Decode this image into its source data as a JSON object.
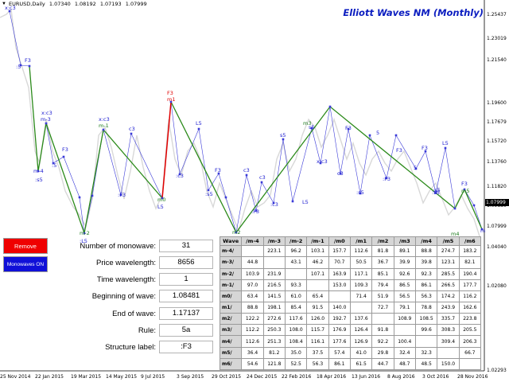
{
  "header": {
    "arrow": "▼",
    "symbol": "EURUSD,Daily",
    "open": "1.07340",
    "high": "1.08192",
    "low": "1.07193",
    "close": "1.07999"
  },
  "title": "Elliott Waves NM (Monthly)",
  "colors": {
    "title": "#0b1dc0",
    "green_wave": "#2b8a1a",
    "red_wave": "#e00000",
    "blue_line": "#3a3ad8",
    "price_series": "#d8d8d8",
    "label_blue": "#1a1ad0",
    "label_green": "#1a7a1a",
    "remove_button": "#ef0000",
    "monowaves_button": "#1010d8"
  },
  "y_axis": [
    "1.25437",
    "1.23019",
    "1.21540",
    "1.19600",
    "1.17679",
    "1.15720",
    "1.13760",
    "1.11820",
    "1.09880",
    "1.07999",
    "1.04040",
    "1.02080",
    "1.02293"
  ],
  "current_price": "1.07999",
  "x_axis": [
    "25 Nov 2014",
    "22 Jan 2015",
    "19 Mar 2015",
    "14 May 2015",
    "9 Jul 2015",
    "3 Sep 2015",
    "29 Oct 2015",
    "24 Dec 2015",
    "22 Feb 2016",
    "18 Apr 2016",
    "13 Jun 2016",
    "8 Aug 2016",
    "3 Oct 2016",
    "28 Nov 2016"
  ],
  "wave_labels": [
    {
      "text": "x:c3",
      "color": "blue"
    },
    {
      "text": "F3",
      "color": "blue"
    },
    {
      "text": ":5",
      "color": "blue"
    },
    {
      "text": "x:c3",
      "color": "blue"
    },
    {
      "text": "m-3",
      "color": "blue"
    },
    {
      "text": "m-4",
      "color": "blue"
    },
    {
      "text": ":s5",
      "color": "blue"
    },
    {
      "text": ":5",
      "color": "blue"
    },
    {
      "text": "F3",
      "color": "blue"
    },
    {
      "text": "m-2",
      "color": "green"
    },
    {
      "text": ":L5",
      "color": "blue"
    },
    {
      "text": "x:c3",
      "color": "blue"
    },
    {
      "text": "m-1",
      "color": "green"
    },
    {
      "text": "c3",
      "color": "blue"
    },
    {
      "text": ":F3",
      "color": "blue"
    },
    {
      "text": "F3",
      "color": "red"
    },
    {
      "text": "m1",
      "color": "red"
    },
    {
      "text": "m0",
      "color": "green"
    },
    {
      "text": "L5",
      "color": "blue"
    },
    {
      "text": ":c3",
      "color": "blue"
    },
    {
      "text": "L5",
      "color": "blue"
    },
    {
      "text": ":s5",
      "color": "blue"
    },
    {
      "text": "F3",
      "color": "blue"
    },
    {
      "text": "m2",
      "color": "green"
    },
    {
      "text": ":L5",
      "color": "blue"
    },
    {
      "text": "c3",
      "color": "blue"
    },
    {
      "text": ":F3",
      "color": "blue"
    },
    {
      "text": "c3",
      "color": "blue"
    },
    {
      "text": ":c3",
      "color": "blue"
    },
    {
      "text": "s5",
      "color": "blue"
    },
    {
      "text": "L5",
      "color": "blue"
    },
    {
      "text": "m3",
      "color": "green"
    },
    {
      "text": "s5",
      "color": "blue"
    },
    {
      "text": "x:c3",
      "color": "blue"
    },
    {
      "text": "F3",
      "color": "blue"
    },
    {
      "text": "c3",
      "color": "blue"
    },
    {
      "text": ":s5",
      "color": "blue"
    },
    {
      "text": ":F3",
      "color": "blue"
    },
    {
      "text": "5",
      "color": "blue"
    },
    {
      "text": "F3",
      "color": "blue"
    },
    {
      "text": ":L5",
      "color": "blue"
    },
    {
      "text": "5",
      "color": "blue"
    },
    {
      "text": "F3",
      "color": "blue"
    },
    {
      "text": ":s5",
      "color": "blue"
    },
    {
      "text": "L5",
      "color": "blue"
    },
    {
      "text": "m4",
      "color": "green"
    },
    {
      "text": ":5",
      "color": "blue"
    },
    {
      "text": "F3",
      "color": "blue"
    },
    {
      "text": "m5",
      "color": "green"
    },
    {
      "text": "m",
      "color": "blue"
    }
  ],
  "buttons": {
    "remove": "Remove",
    "monowaves": "Monowaves ON"
  },
  "info": [
    {
      "label": "Number of monowave:",
      "value": "31"
    },
    {
      "label": "Price wavelength:",
      "value": "8656"
    },
    {
      "label": "Time wavelength:",
      "value": "1"
    },
    {
      "label": "Beginning of wave:",
      "value": "1.08481"
    },
    {
      "label": "End of wave:",
      "value": "1.17137"
    },
    {
      "label": "Rule:",
      "value": "5a"
    },
    {
      "label": "Structure label:",
      "value": ":F3"
    }
  ],
  "table": {
    "columns": [
      "Wave",
      "/m-4",
      "/m-3",
      "/m-2",
      "/m-1",
      "/m0",
      "/m1",
      "/m2",
      "/m3",
      "/m4",
      "/m5",
      "/m6"
    ],
    "rows": [
      {
        "label": "m-4/",
        "cells": [
          "",
          "223.1",
          "96.2",
          "103.1",
          "157.7",
          "112.6",
          "81.8",
          "89.1",
          "88.8",
          "274.7",
          "183.2"
        ]
      },
      {
        "label": "m-3/",
        "cells": [
          "44.8",
          "",
          "43.1",
          "46.2",
          "70.7",
          "50.5",
          "36.7",
          "39.9",
          "39.8",
          "123.1",
          "82.1"
        ]
      },
      {
        "label": "m-2/",
        "cells": [
          "103.9",
          "231.9",
          "",
          "107.1",
          "163.9",
          "117.1",
          "85.1",
          "92.6",
          "92.3",
          "285.5",
          "190.4"
        ]
      },
      {
        "label": "m-1/",
        "cells": [
          "97.0",
          "216.5",
          "93.3",
          "",
          "153.0",
          "109.3",
          "79.4",
          "86.5",
          "86.1",
          "266.5",
          "177.7"
        ]
      },
      {
        "label": "m0/",
        "cells": [
          "63.4",
          "141.5",
          "61.0",
          "65.4",
          "",
          "71.4",
          "51.9",
          "56.5",
          "56.3",
          "174.2",
          "116.2"
        ]
      },
      {
        "label": "m1/",
        "cells": [
          "88.8",
          "198.1",
          "85.4",
          "91.5",
          "140.0",
          "",
          "72.7",
          "79.1",
          "78.8",
          "243.9",
          "162.6"
        ]
      },
      {
        "label": "m2/",
        "cells": [
          "122.2",
          "272.6",
          "117.6",
          "126.0",
          "192.7",
          "137.6",
          "",
          "108.9",
          "108.5",
          "335.7",
          "223.8"
        ]
      },
      {
        "label": "m3/",
        "cells": [
          "112.2",
          "250.3",
          "108.0",
          "115.7",
          "176.9",
          "126.4",
          "91.8",
          "",
          "99.6",
          "308.3",
          "205.5"
        ]
      },
      {
        "label": "m4/",
        "cells": [
          "112.6",
          "251.3",
          "108.4",
          "116.1",
          "177.6",
          "126.9",
          "92.2",
          "100.4",
          "",
          "309.4",
          "206.3"
        ]
      },
      {
        "label": "m5/",
        "cells": [
          "36.4",
          "81.2",
          "35.0",
          "37.5",
          "57.4",
          "41.0",
          "29.8",
          "32.4",
          "32.3",
          "",
          "66.7"
        ]
      },
      {
        "label": "m6/",
        "cells": [
          "54.6",
          "121.8",
          "52.5",
          "56.3",
          "86.1",
          "61.5",
          "44.7",
          "48.7",
          "48.5",
          "150.0",
          ""
        ]
      }
    ]
  }
}
